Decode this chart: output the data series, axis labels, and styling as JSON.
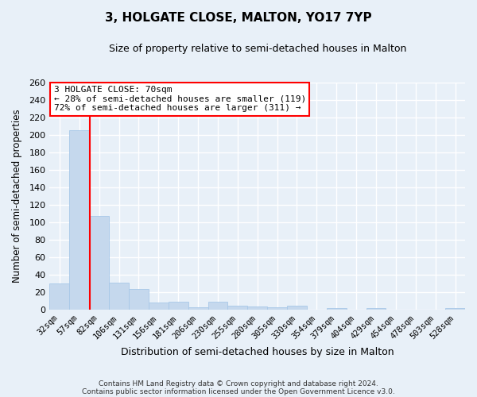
{
  "title": "3, HOLGATE CLOSE, MALTON, YO17 7YP",
  "subtitle": "Size of property relative to semi-detached houses in Malton",
  "xlabel": "Distribution of semi-detached houses by size in Malton",
  "ylabel": "Number of semi-detached properties",
  "bin_labels": [
    "32sqm",
    "57sqm",
    "82sqm",
    "106sqm",
    "131sqm",
    "156sqm",
    "181sqm",
    "206sqm",
    "230sqm",
    "255sqm",
    "280sqm",
    "305sqm",
    "330sqm",
    "354sqm",
    "379sqm",
    "404sqm",
    "429sqm",
    "454sqm",
    "478sqm",
    "503sqm",
    "528sqm"
  ],
  "bar_heights": [
    30,
    205,
    107,
    31,
    24,
    8,
    9,
    3,
    9,
    5,
    4,
    3,
    5,
    0,
    2,
    0,
    2,
    0,
    0,
    0,
    2
  ],
  "bar_color": "#c5d8ed",
  "bar_edge_color": "#a8c8e8",
  "background_color": "#e8f0f8",
  "grid_color": "#ffffff",
  "red_line_x": 1.52,
  "property_label": "3 HOLGATE CLOSE: 70sqm",
  "pct_smaller": 28,
  "pct_larger": 72,
  "count_smaller": 119,
  "count_larger": 311,
  "ylim": [
    0,
    260
  ],
  "yticks": [
    0,
    20,
    40,
    60,
    80,
    100,
    120,
    140,
    160,
    180,
    200,
    220,
    240,
    260
  ],
  "footer_line1": "Contains HM Land Registry data © Crown copyright and database right 2024.",
  "footer_line2": "Contains public sector information licensed under the Open Government Licence v3.0."
}
